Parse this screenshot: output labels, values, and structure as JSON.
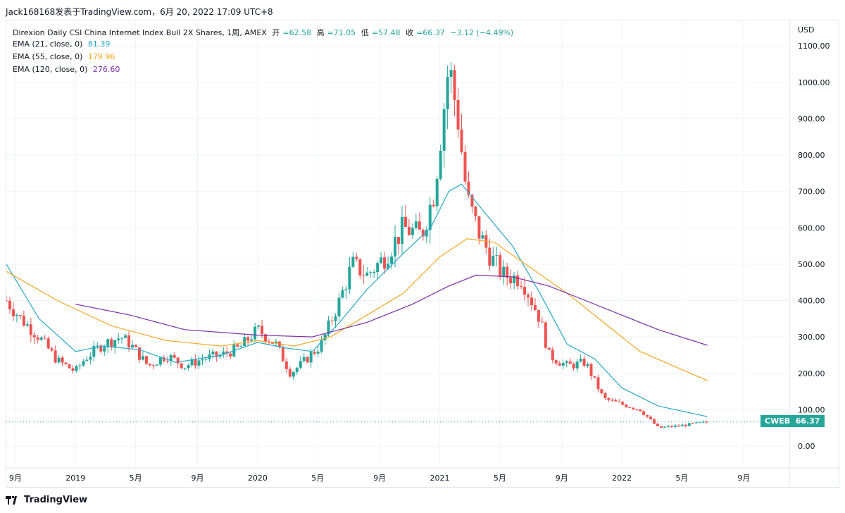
{
  "caption": "Jack168168发表于TradingView.com，6月 20, 2022 17:09 UTC+8",
  "legend": {
    "title": "Direxion Daily CSI China Internet Index Bull 2X Shares, 1周, AMEX",
    "open_label": "开",
    "open": "=62.58",
    "high_label": "高",
    "high": "=71.05",
    "low_label": "低",
    "low": "=57.48",
    "close_label": "收",
    "close": "=66.37",
    "change": "−3.12 (−4.49%)",
    "ema21_label": "EMA (21, close, 0)",
    "ema21_value": "81.39",
    "ema55_label": "EMA (55, close, 0)",
    "ema55_value": "179.96",
    "ema120_label": "EMA (120, close, 0)",
    "ema120_value": "276.60"
  },
  "footer": {
    "brand": "TradingView"
  },
  "colors": {
    "up": "#26a69a",
    "down": "#ef5350",
    "ema21": "#26a8c6",
    "ema55": "#f5a623",
    "ema120": "#7b2fa8",
    "grid": "#f0f3fa"
  },
  "chart_data": {
    "type": "candlestick",
    "currency": "USD",
    "ticker": "CWEB",
    "last_price": "66.37",
    "ylim": [
      -60,
      1170
    ],
    "yticks": [
      0,
      100,
      200,
      300,
      400,
      500,
      600,
      700,
      800,
      900,
      1000,
      1100
    ],
    "ytick_labels": [
      "0.00",
      "100.00",
      "200.00",
      "300.00",
      "400.00",
      "500.00",
      "600.00",
      "700.00",
      "800.00",
      "900.00",
      "1000.00",
      "1100.00"
    ],
    "time_range": [
      2018.62,
      2022.92
    ],
    "xticks": [
      {
        "t": 2018.67,
        "label": "9月"
      },
      {
        "t": 2019.0,
        "label": "2019"
      },
      {
        "t": 2019.33,
        "label": "5月"
      },
      {
        "t": 2019.67,
        "label": "9月"
      },
      {
        "t": 2020.0,
        "label": "2020"
      },
      {
        "t": 2020.33,
        "label": "5月"
      },
      {
        "t": 2020.67,
        "label": "9月"
      },
      {
        "t": 2021.0,
        "label": "2021"
      },
      {
        "t": 2021.33,
        "label": "5月"
      },
      {
        "t": 2021.67,
        "label": "9月"
      },
      {
        "t": 2022.0,
        "label": "2022"
      },
      {
        "t": 2022.33,
        "label": "5月"
      },
      {
        "t": 2022.67,
        "label": "9月"
      }
    ],
    "keypoints": [
      {
        "t": 2018.62,
        "c": 400
      },
      {
        "t": 2018.7,
        "c": 350
      },
      {
        "t": 2018.8,
        "c": 300
      },
      {
        "t": 2018.9,
        "c": 235
      },
      {
        "t": 2019.0,
        "c": 205
      },
      {
        "t": 2019.05,
        "c": 240
      },
      {
        "t": 2019.15,
        "c": 280
      },
      {
        "t": 2019.25,
        "c": 300
      },
      {
        "t": 2019.3,
        "c": 280
      },
      {
        "t": 2019.4,
        "c": 220
      },
      {
        "t": 2019.5,
        "c": 250
      },
      {
        "t": 2019.6,
        "c": 220
      },
      {
        "t": 2019.7,
        "c": 240
      },
      {
        "t": 2019.8,
        "c": 250
      },
      {
        "t": 2019.9,
        "c": 270
      },
      {
        "t": 2020.0,
        "c": 320
      },
      {
        "t": 2020.1,
        "c": 280
      },
      {
        "t": 2020.18,
        "c": 200
      },
      {
        "t": 2020.25,
        "c": 230
      },
      {
        "t": 2020.35,
        "c": 280
      },
      {
        "t": 2020.45,
        "c": 400
      },
      {
        "t": 2020.52,
        "c": 500
      },
      {
        "t": 2020.6,
        "c": 470
      },
      {
        "t": 2020.7,
        "c": 520
      },
      {
        "t": 2020.8,
        "c": 600
      },
      {
        "t": 2020.9,
        "c": 580
      },
      {
        "t": 2020.97,
        "c": 700
      },
      {
        "t": 2021.05,
        "c": 1050
      },
      {
        "t": 2021.1,
        "c": 900
      },
      {
        "t": 2021.15,
        "c": 680
      },
      {
        "t": 2021.22,
        "c": 580
      },
      {
        "t": 2021.28,
        "c": 520
      },
      {
        "t": 2021.35,
        "c": 470
      },
      {
        "t": 2021.45,
        "c": 460
      },
      {
        "t": 2021.55,
        "c": 350
      },
      {
        "t": 2021.6,
        "c": 250
      },
      {
        "t": 2021.7,
        "c": 220
      },
      {
        "t": 2021.8,
        "c": 230
      },
      {
        "t": 2021.9,
        "c": 130
      },
      {
        "t": 2022.0,
        "c": 115
      },
      {
        "t": 2022.1,
        "c": 100
      },
      {
        "t": 2022.2,
        "c": 50
      },
      {
        "t": 2022.3,
        "c": 55
      },
      {
        "t": 2022.38,
        "c": 60
      },
      {
        "t": 2022.47,
        "c": 66
      }
    ],
    "ema21": [
      {
        "t": 2018.62,
        "v": 500
      },
      {
        "t": 2018.8,
        "v": 350
      },
      {
        "t": 2019.0,
        "v": 260
      },
      {
        "t": 2019.15,
        "v": 275
      },
      {
        "t": 2019.35,
        "v": 265
      },
      {
        "t": 2019.55,
        "v": 230
      },
      {
        "t": 2019.8,
        "v": 250
      },
      {
        "t": 2020.0,
        "v": 285
      },
      {
        "t": 2020.15,
        "v": 270
      },
      {
        "t": 2020.3,
        "v": 260
      },
      {
        "t": 2020.45,
        "v": 340
      },
      {
        "t": 2020.6,
        "v": 430
      },
      {
        "t": 2020.8,
        "v": 530
      },
      {
        "t": 2020.95,
        "v": 600
      },
      {
        "t": 2021.05,
        "v": 700
      },
      {
        "t": 2021.12,
        "v": 720
      },
      {
        "t": 2021.25,
        "v": 640
      },
      {
        "t": 2021.4,
        "v": 550
      },
      {
        "t": 2021.55,
        "v": 420
      },
      {
        "t": 2021.7,
        "v": 280
      },
      {
        "t": 2021.85,
        "v": 240
      },
      {
        "t": 2022.0,
        "v": 160
      },
      {
        "t": 2022.2,
        "v": 110
      },
      {
        "t": 2022.47,
        "v": 81
      }
    ],
    "ema55": [
      {
        "t": 2018.62,
        "v": 480
      },
      {
        "t": 2018.9,
        "v": 400
      },
      {
        "t": 2019.2,
        "v": 330
      },
      {
        "t": 2019.5,
        "v": 290
      },
      {
        "t": 2019.8,
        "v": 275
      },
      {
        "t": 2020.0,
        "v": 290
      },
      {
        "t": 2020.2,
        "v": 275
      },
      {
        "t": 2020.4,
        "v": 300
      },
      {
        "t": 2020.6,
        "v": 360
      },
      {
        "t": 2020.8,
        "v": 420
      },
      {
        "t": 2021.0,
        "v": 520
      },
      {
        "t": 2021.15,
        "v": 570
      },
      {
        "t": 2021.3,
        "v": 560
      },
      {
        "t": 2021.5,
        "v": 490
      },
      {
        "t": 2021.7,
        "v": 420
      },
      {
        "t": 2021.9,
        "v": 340
      },
      {
        "t": 2022.1,
        "v": 260
      },
      {
        "t": 2022.47,
        "v": 180
      }
    ],
    "ema120": [
      {
        "t": 2019.0,
        "v": 390
      },
      {
        "t": 2019.3,
        "v": 360
      },
      {
        "t": 2019.6,
        "v": 320
      },
      {
        "t": 2020.0,
        "v": 305
      },
      {
        "t": 2020.3,
        "v": 300
      },
      {
        "t": 2020.6,
        "v": 340
      },
      {
        "t": 2020.85,
        "v": 390
      },
      {
        "t": 2021.05,
        "v": 440
      },
      {
        "t": 2021.2,
        "v": 470
      },
      {
        "t": 2021.4,
        "v": 465
      },
      {
        "t": 2021.6,
        "v": 440
      },
      {
        "t": 2021.8,
        "v": 400
      },
      {
        "t": 2022.0,
        "v": 360
      },
      {
        "t": 2022.2,
        "v": 320
      },
      {
        "t": 2022.47,
        "v": 277
      }
    ]
  }
}
